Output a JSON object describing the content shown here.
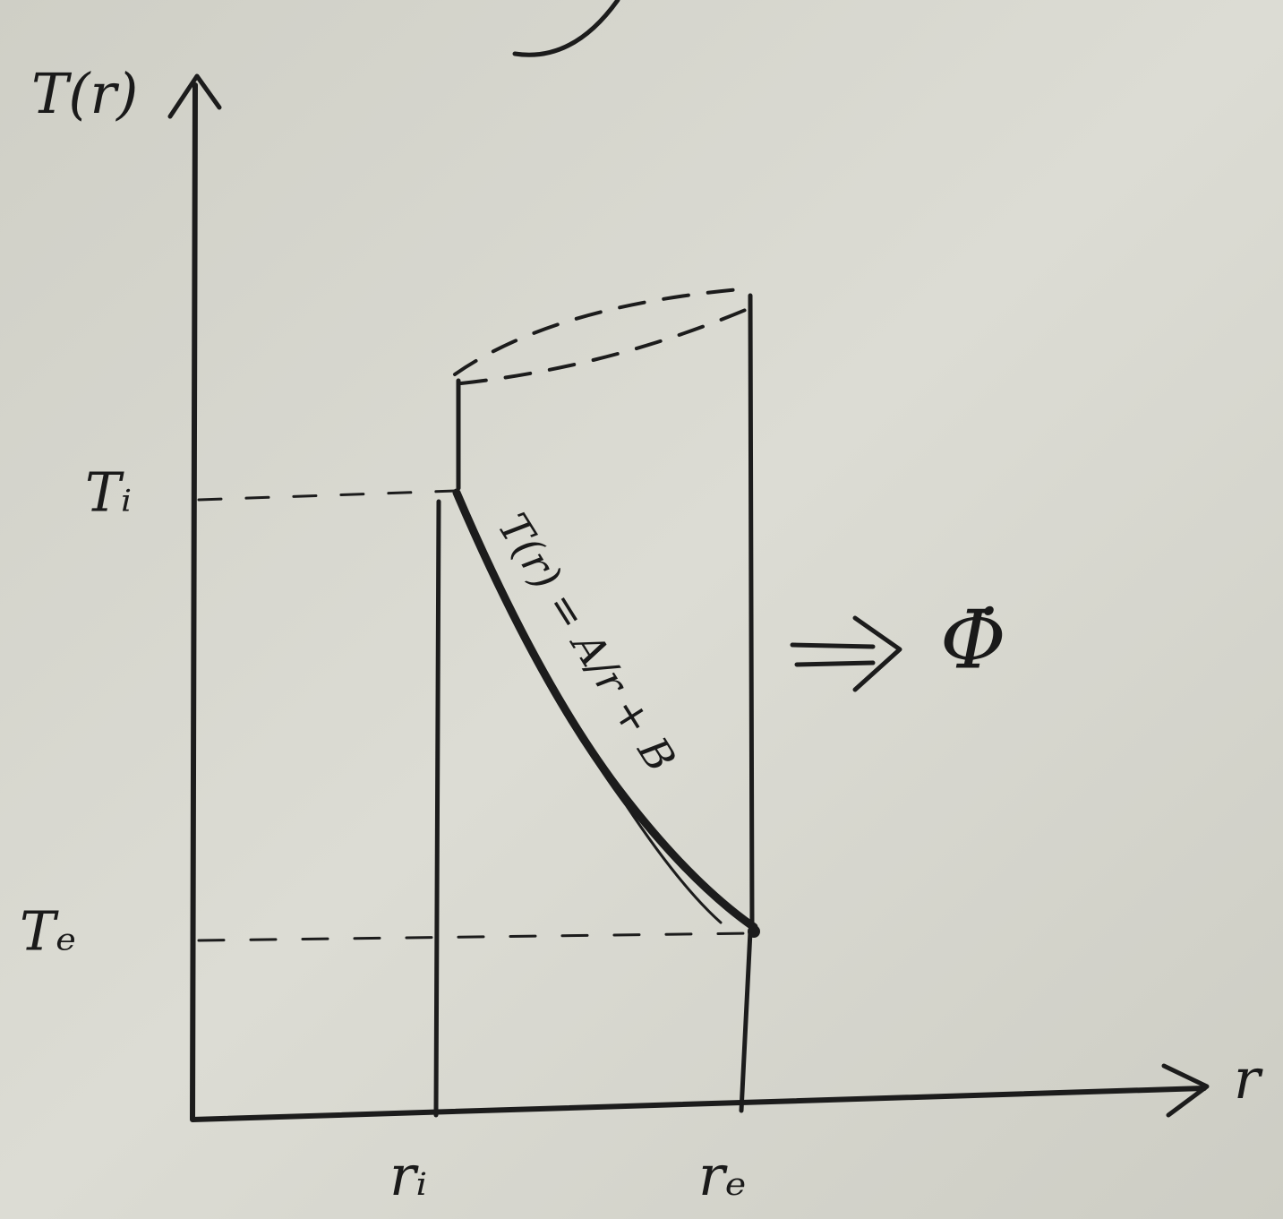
{
  "axes": {
    "y_label": "T(r)",
    "x_label": "r"
  },
  "levels": {
    "inner_temperature": "Tᵢ",
    "outer_temperature": "Tₑ"
  },
  "radii": {
    "inner_radius": "rᵢ",
    "outer_radius": "rₑ"
  },
  "curve": {
    "equation": "T(r) = A/r + B"
  },
  "result": {
    "symbol": "Φ̇"
  }
}
